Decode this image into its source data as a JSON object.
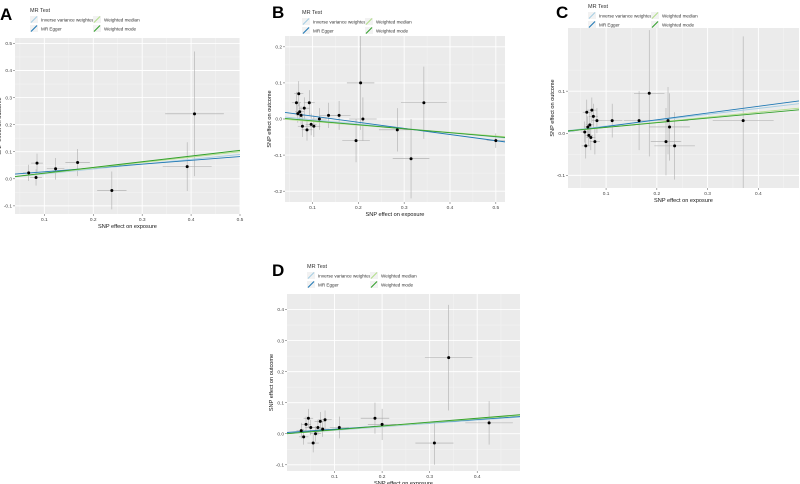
{
  "figure": {
    "x_axis_title": "SNP effect on exposure",
    "y_axis_title": "SNP effect on outcome",
    "legend_title": "MR Test",
    "legend_entries": [
      {
        "label": "Inverse variance weighted",
        "color": "#a6cee3"
      },
      {
        "label": "MR Egger",
        "color": "#1f78b4"
      },
      {
        "label": "Weighted median",
        "color": "#b2df8a"
      },
      {
        "label": "Weighted mode",
        "color": "#33a02c"
      }
    ],
    "colors": {
      "panel_background": "#ebebeb",
      "grid_major": "#ffffff",
      "grid_minor": "#f4f4f4",
      "point": "#000000",
      "error_bar": "#a8a8a8"
    }
  },
  "chart_data": [
    {
      "panel": "A",
      "type": "scatter",
      "xlim": [
        0.04,
        0.5
      ],
      "ylim": [
        -0.13,
        0.52
      ],
      "x_ticks": [
        0.1,
        0.2,
        0.3,
        0.4,
        0.5
      ],
      "x_tick_labels": [
        "0.1",
        "0.2",
        "0.3",
        "0.4",
        "0.5"
      ],
      "y_ticks": [
        -0.1,
        0.0,
        0.1,
        0.2,
        0.3,
        0.4,
        0.5
      ],
      "y_tick_labels": [
        "-0.1",
        "0.0",
        "0.1",
        "0.2",
        "0.3",
        "0.4",
        "0.5"
      ],
      "points": [
        {
          "x": 0.068,
          "y": 0.022,
          "xerr": 0.012,
          "yerr": 0.03
        },
        {
          "x": 0.083,
          "y": 0.005,
          "xerr": 0.012,
          "yerr": 0.03
        },
        {
          "x": 0.085,
          "y": 0.058,
          "xerr": 0.012,
          "yerr": 0.035
        },
        {
          "x": 0.123,
          "y": 0.037,
          "xerr": 0.018,
          "yerr": 0.04
        },
        {
          "x": 0.168,
          "y": 0.06,
          "xerr": 0.025,
          "yerr": 0.05
        },
        {
          "x": 0.238,
          "y": -0.043,
          "xerr": 0.03,
          "yerr": 0.07
        },
        {
          "x": 0.392,
          "y": 0.045,
          "xerr": 0.05,
          "yerr": 0.09
        },
        {
          "x": 0.407,
          "y": 0.24,
          "xerr": 0.06,
          "yerr": 0.23
        }
      ],
      "lines": [
        {
          "method": "Inverse variance weighted",
          "intercept": 0,
          "slope": 0.18
        },
        {
          "method": "MR Egger",
          "intercept": 0.012,
          "slope": 0.14
        },
        {
          "method": "Weighted median",
          "intercept": 0,
          "slope": 0.2
        },
        {
          "method": "Weighted mode",
          "intercept": 0,
          "slope": 0.21
        }
      ]
    },
    {
      "panel": "B",
      "type": "scatter",
      "xlim": [
        0.04,
        0.52
      ],
      "ylim": [
        -0.23,
        0.23
      ],
      "x_ticks": [
        0.1,
        0.2,
        0.3,
        0.4,
        0.5
      ],
      "x_tick_labels": [
        "0.1",
        "0.2",
        "0.3",
        "0.4",
        "0.5"
      ],
      "y_ticks": [
        -0.2,
        -0.1,
        0.0,
        0.1,
        0.2
      ],
      "y_tick_labels": [
        "-0.2",
        "-0.1",
        "0.0",
        "0.1",
        "0.2"
      ],
      "points": [
        {
          "x": 0.065,
          "y": 0.045,
          "xerr": 0.01,
          "yerr": 0.03
        },
        {
          "x": 0.068,
          "y": 0.015,
          "xerr": 0.01,
          "yerr": 0.025
        },
        {
          "x": 0.07,
          "y": 0.07,
          "xerr": 0.01,
          "yerr": 0.035
        },
        {
          "x": 0.072,
          "y": 0.02,
          "xerr": 0.01,
          "yerr": 0.025
        },
        {
          "x": 0.075,
          "y": 0.01,
          "xerr": 0.01,
          "yerr": 0.025
        },
        {
          "x": 0.078,
          "y": -0.02,
          "xerr": 0.01,
          "yerr": 0.03
        },
        {
          "x": 0.082,
          "y": 0.03,
          "xerr": 0.012,
          "yerr": 0.03
        },
        {
          "x": 0.088,
          "y": -0.03,
          "xerr": 0.012,
          "yerr": 0.03
        },
        {
          "x": 0.093,
          "y": 0.045,
          "xerr": 0.012,
          "yerr": 0.035
        },
        {
          "x": 0.097,
          "y": -0.015,
          "xerr": 0.012,
          "yerr": 0.03
        },
        {
          "x": 0.103,
          "y": -0.02,
          "xerr": 0.014,
          "yerr": 0.03
        },
        {
          "x": 0.115,
          "y": 0.0,
          "xerr": 0.016,
          "yerr": 0.03
        },
        {
          "x": 0.135,
          "y": 0.01,
          "xerr": 0.02,
          "yerr": 0.035
        },
        {
          "x": 0.158,
          "y": 0.01,
          "xerr": 0.025,
          "yerr": 0.04
        },
        {
          "x": 0.195,
          "y": -0.06,
          "xerr": 0.03,
          "yerr": 0.06
        },
        {
          "x": 0.205,
          "y": 0.1,
          "xerr": 0.03,
          "yerr": 0.13
        },
        {
          "x": 0.21,
          "y": 0.0,
          "xerr": 0.03,
          "yerr": 0.06
        },
        {
          "x": 0.285,
          "y": -0.03,
          "xerr": 0.04,
          "yerr": 0.06
        },
        {
          "x": 0.315,
          "y": -0.11,
          "xerr": 0.04,
          "yerr": 0.11
        },
        {
          "x": 0.343,
          "y": 0.045,
          "xerr": 0.05,
          "yerr": 0.1
        },
        {
          "x": 0.5,
          "y": -0.06,
          "xerr": 0.02,
          "yerr": 0.02
        }
      ],
      "lines": [
        {
          "method": "Inverse variance weighted",
          "intercept": 0.01,
          "slope": -0.12
        },
        {
          "method": "MR Egger",
          "intercept": 0.025,
          "slope": -0.17
        },
        {
          "method": "Weighted median",
          "intercept": 0.003,
          "slope": -0.1
        },
        {
          "method": "Weighted mode",
          "intercept": 0.006,
          "slope": -0.11
        }
      ]
    },
    {
      "panel": "C",
      "type": "scatter",
      "xlim": [
        0.025,
        0.48
      ],
      "ylim": [
        -0.13,
        0.25
      ],
      "x_ticks": [
        0.1,
        0.2,
        0.3,
        0.4
      ],
      "x_tick_labels": [
        "0.1",
        "0.2",
        "0.3",
        "0.4"
      ],
      "y_ticks": [
        -0.1,
        0.0,
        0.1
      ],
      "y_tick_labels": [
        "-0.1",
        "0.0",
        "0.1"
      ],
      "points": [
        {
          "x": 0.058,
          "y": 0.003,
          "xerr": 0.008,
          "yerr": 0.025
        },
        {
          "x": 0.06,
          "y": -0.03,
          "xerr": 0.008,
          "yerr": 0.03
        },
        {
          "x": 0.062,
          "y": 0.05,
          "xerr": 0.008,
          "yerr": 0.03
        },
        {
          "x": 0.064,
          "y": 0.015,
          "xerr": 0.008,
          "yerr": 0.025
        },
        {
          "x": 0.066,
          "y": -0.005,
          "xerr": 0.008,
          "yerr": 0.025
        },
        {
          "x": 0.068,
          "y": 0.02,
          "xerr": 0.008,
          "yerr": 0.03
        },
        {
          "x": 0.07,
          "y": -0.01,
          "xerr": 0.009,
          "yerr": 0.03
        },
        {
          "x": 0.072,
          "y": 0.055,
          "xerr": 0.009,
          "yerr": 0.03
        },
        {
          "x": 0.075,
          "y": 0.04,
          "xerr": 0.009,
          "yerr": 0.03
        },
        {
          "x": 0.078,
          "y": -0.02,
          "xerr": 0.01,
          "yerr": 0.03
        },
        {
          "x": 0.082,
          "y": 0.03,
          "xerr": 0.01,
          "yerr": 0.03
        },
        {
          "x": 0.112,
          "y": 0.03,
          "xerr": 0.02,
          "yerr": 0.04
        },
        {
          "x": 0.165,
          "y": 0.03,
          "xerr": 0.03,
          "yerr": 0.07
        },
        {
          "x": 0.185,
          "y": 0.095,
          "xerr": 0.03,
          "yerr": 0.15
        },
        {
          "x": 0.218,
          "y": -0.02,
          "xerr": 0.03,
          "yerr": 0.08
        },
        {
          "x": 0.222,
          "y": 0.03,
          "xerr": 0.04,
          "yerr": 0.08
        },
        {
          "x": 0.225,
          "y": 0.015,
          "xerr": 0.04,
          "yerr": 0.08
        },
        {
          "x": 0.235,
          "y": -0.03,
          "xerr": 0.04,
          "yerr": 0.08
        },
        {
          "x": 0.37,
          "y": 0.03,
          "xerr": 0.06,
          "yerr": 0.2
        }
      ],
      "lines": [
        {
          "method": "Inverse variance weighted",
          "intercept": 0.003,
          "slope": 0.14
        },
        {
          "method": "MR Egger",
          "intercept": 0,
          "slope": 0.16
        },
        {
          "method": "Weighted median",
          "intercept": 0.002,
          "slope": 0.12
        },
        {
          "method": "Weighted mode",
          "intercept": 0.003,
          "slope": 0.11
        }
      ]
    },
    {
      "panel": "D",
      "type": "scatter",
      "xlim": [
        0.0,
        0.49
      ],
      "ylim": [
        -0.12,
        0.45
      ],
      "x_ticks": [
        0.1,
        0.2,
        0.3,
        0.4
      ],
      "x_tick_labels": [
        "0.1",
        "0.2",
        "0.3",
        "0.4"
      ],
      "y_ticks": [
        -0.1,
        0.0,
        0.1,
        0.2,
        0.3,
        0.4
      ],
      "y_tick_labels": [
        "-0.1",
        "0.0",
        "0.1",
        "0.2",
        "0.3",
        "0.4"
      ],
      "points": [
        {
          "x": 0.03,
          "y": 0.01,
          "xerr": 0.01,
          "yerr": 0.025
        },
        {
          "x": 0.035,
          "y": -0.01,
          "xerr": 0.01,
          "yerr": 0.025
        },
        {
          "x": 0.04,
          "y": 0.03,
          "xerr": 0.01,
          "yerr": 0.025
        },
        {
          "x": 0.045,
          "y": 0.05,
          "xerr": 0.01,
          "yerr": 0.03
        },
        {
          "x": 0.05,
          "y": 0.02,
          "xerr": 0.012,
          "yerr": 0.025
        },
        {
          "x": 0.055,
          "y": -0.03,
          "xerr": 0.012,
          "yerr": 0.03
        },
        {
          "x": 0.06,
          "y": 0.0,
          "xerr": 0.012,
          "yerr": 0.025
        },
        {
          "x": 0.065,
          "y": 0.02,
          "xerr": 0.012,
          "yerr": 0.025
        },
        {
          "x": 0.07,
          "y": 0.04,
          "xerr": 0.012,
          "yerr": 0.03
        },
        {
          "x": 0.075,
          "y": 0.015,
          "xerr": 0.014,
          "yerr": 0.025
        },
        {
          "x": 0.08,
          "y": 0.045,
          "xerr": 0.014,
          "yerr": 0.03
        },
        {
          "x": 0.11,
          "y": 0.02,
          "xerr": 0.02,
          "yerr": 0.035
        },
        {
          "x": 0.185,
          "y": 0.05,
          "xerr": 0.03,
          "yerr": 0.05
        },
        {
          "x": 0.2,
          "y": 0.03,
          "xerr": 0.03,
          "yerr": 0.05
        },
        {
          "x": 0.31,
          "y": -0.03,
          "xerr": 0.04,
          "yerr": 0.07
        },
        {
          "x": 0.34,
          "y": 0.245,
          "xerr": 0.05,
          "yerr": 0.17
        },
        {
          "x": 0.425,
          "y": 0.035,
          "xerr": 0.05,
          "yerr": 0.07
        }
      ],
      "lines": [
        {
          "method": "Inverse variance weighted",
          "intercept": 0,
          "slope": 0.11
        },
        {
          "method": "MR Egger",
          "intercept": 0.004,
          "slope": 0.105
        },
        {
          "method": "Weighted median",
          "intercept": 0,
          "slope": 0.12
        },
        {
          "method": "Weighted mode",
          "intercept": 0,
          "slope": 0.125
        }
      ]
    }
  ]
}
